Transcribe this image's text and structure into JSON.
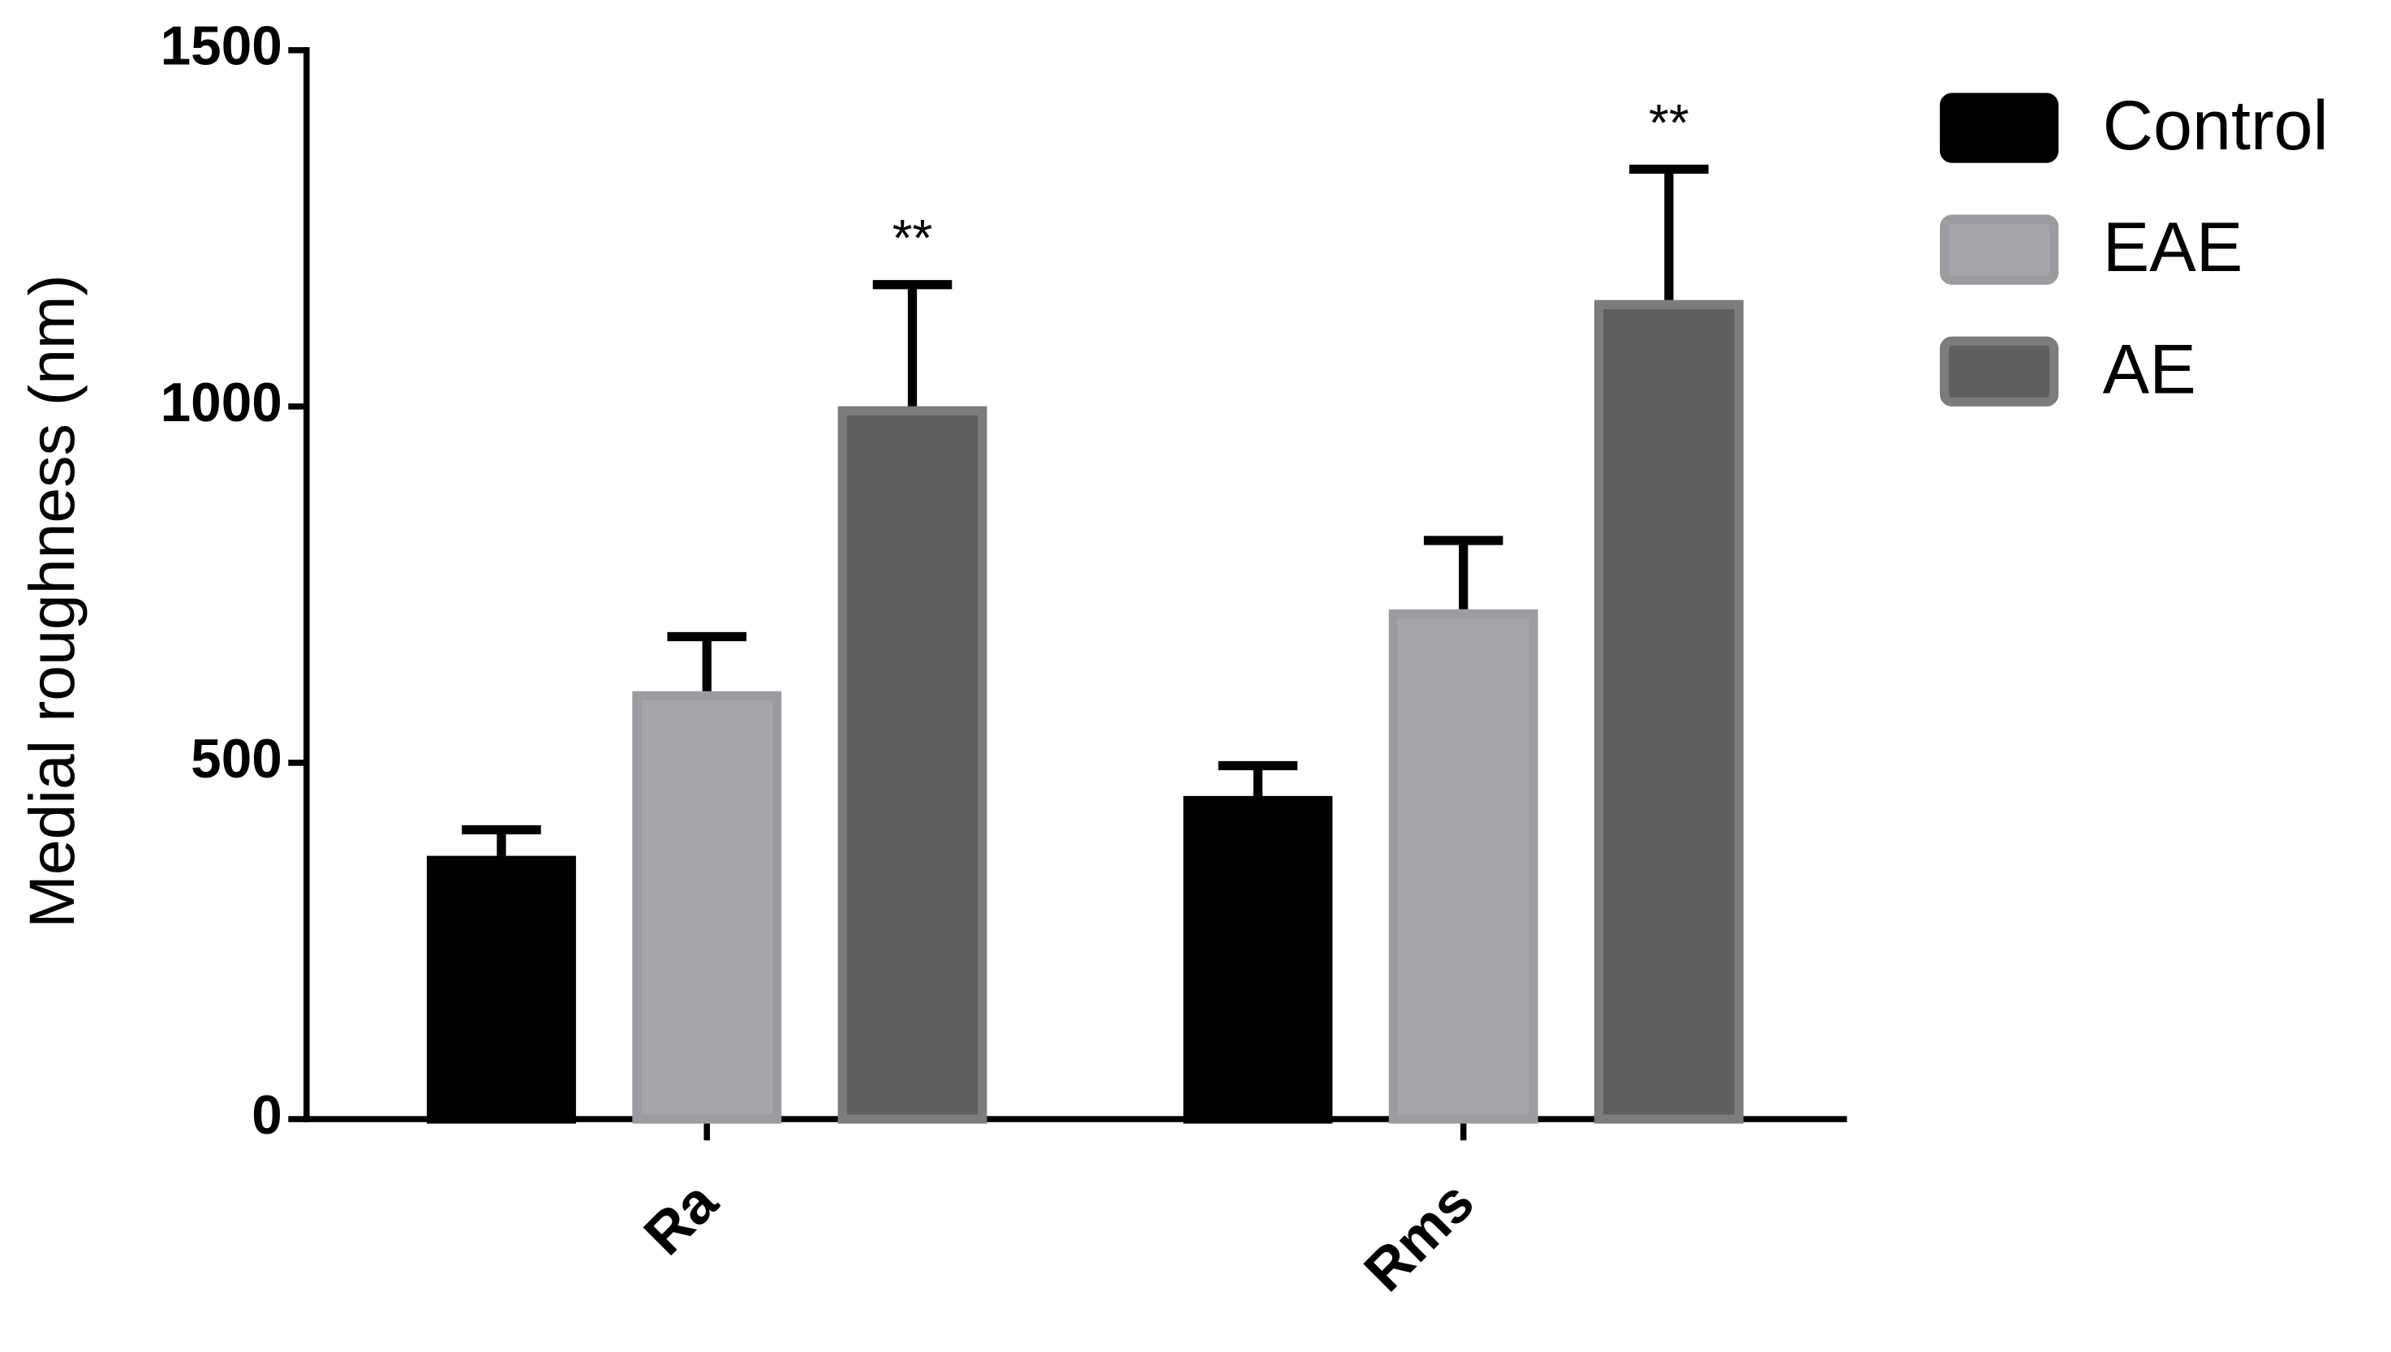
{
  "chart_data": {
    "type": "bar",
    "ylabel": "Medial roughness (nm)",
    "categories": [
      "Ra",
      "Rms"
    ],
    "series": [
      {
        "name": "Control",
        "color": "#000000",
        "edgecolor": "#000000",
        "values": [
          363,
          447
        ],
        "errors": [
          43,
          49
        ]
      },
      {
        "name": "EAE",
        "color": "#a6a6aa",
        "edgecolor": "#9c9ca0",
        "values": [
          594,
          709
        ],
        "errors": [
          83,
          103
        ]
      },
      {
        "name": "AE",
        "color": "#5e5e5e",
        "edgecolor": "#7c7c7c",
        "values": [
          994,
          1143
        ],
        "errors": [
          177,
          190
        ],
        "annotations": [
          "**",
          "**"
        ]
      }
    ],
    "ylim": [
      0,
      1500
    ],
    "yticks": [
      0,
      500,
      1000,
      1500
    ],
    "legend": "right",
    "grid": false
  }
}
